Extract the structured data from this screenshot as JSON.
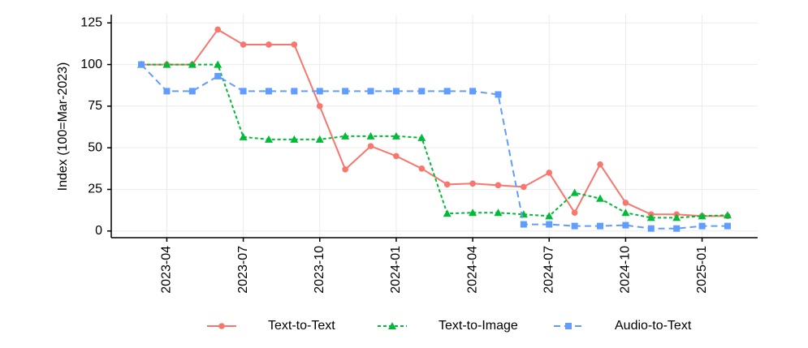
{
  "chart_data": {
    "type": "line",
    "y_label": "Index (100=Mar-2023)",
    "x": [
      "2023-03",
      "2023-04",
      "2023-05",
      "2023-06",
      "2023-07",
      "2023-08",
      "2023-09",
      "2023-10",
      "2023-11",
      "2023-12",
      "2024-01",
      "2024-02",
      "2024-03",
      "2024-04",
      "2024-05",
      "2024-06",
      "2024-07",
      "2024-08",
      "2024-09",
      "2024-10",
      "2024-11",
      "2024-12",
      "2025-01",
      "2025-02"
    ],
    "xticks": [
      "2023-04",
      "2023-07",
      "2023-10",
      "2024-01",
      "2024-04",
      "2024-07",
      "2024-10",
      "2025-01"
    ],
    "ylim": [
      -4,
      130
    ],
    "yticks": [
      0,
      25,
      50,
      75,
      100,
      125
    ],
    "grid": true,
    "legend": "bottom",
    "series": [
      {
        "name": "Text-to-Text",
        "color": "#f8766d",
        "marker": "circle",
        "dash": "solid",
        "values": [
          100,
          100,
          100,
          121,
          112,
          112,
          112,
          75,
          37,
          51,
          45,
          37.5,
          28,
          28.5,
          27.5,
          26.5,
          35,
          11,
          40,
          17,
          10,
          10,
          9,
          9
        ]
      },
      {
        "name": "Text-to-Image",
        "color": "#00ba38",
        "marker": "triangle",
        "dash": "dotted",
        "values": [
          100,
          100,
          100,
          100,
          56.5,
          55,
          55,
          55,
          57,
          57,
          57,
          56,
          10.5,
          11,
          11,
          10,
          9,
          23,
          19.5,
          11,
          8,
          8,
          9,
          9.5
        ]
      },
      {
        "name": "Audio-to-Text",
        "color": "#619cff",
        "marker": "square",
        "dash": "dashed",
        "values": [
          100,
          84,
          84,
          93,
          84,
          84,
          84,
          84,
          84,
          84,
          84,
          84,
          84,
          84,
          82,
          4,
          4,
          3,
          3,
          3.5,
          1.5,
          1.5,
          3,
          3
        ]
      }
    ]
  }
}
